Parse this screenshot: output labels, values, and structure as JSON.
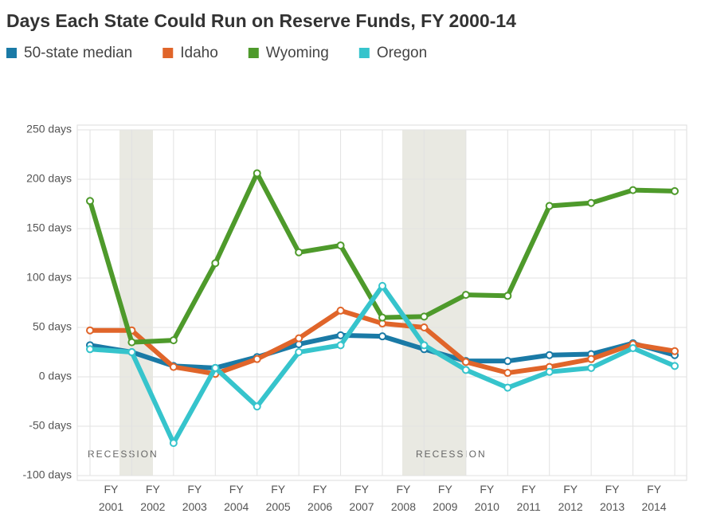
{
  "chart_data": {
    "type": "line",
    "title": "Days Each State Could Run on Reserve Funds, FY 2000-14",
    "categories": [
      null,
      "FY 2001",
      "FY 2002",
      "FY 2003",
      "FY 2004",
      "FY 2005",
      "FY 2006",
      "FY 2007",
      "FY 2008",
      "FY 2009",
      "FY 2010",
      "FY 2011",
      "FY 2012",
      "FY 2013",
      "FY 2014"
    ],
    "series": [
      {
        "name": "50-state median",
        "color": "#1a7aa6",
        "values": [
          32,
          25,
          11,
          9,
          20,
          33,
          42,
          41,
          28,
          16,
          16,
          22,
          23,
          34,
          22
        ]
      },
      {
        "name": "Idaho",
        "color": "#e0652a",
        "values": [
          47,
          47,
          10,
          3,
          18,
          39,
          67,
          54,
          50,
          15,
          4,
          10,
          18,
          33,
          26
        ]
      },
      {
        "name": "Wyoming",
        "color": "#4e9a2b",
        "values": [
          178,
          35,
          37,
          115,
          206,
          126,
          133,
          60,
          61,
          83,
          82,
          173,
          176,
          189,
          188
        ]
      },
      {
        "name": "Oregon",
        "color": "#36c4cc",
        "values": [
          28,
          25,
          -67,
          9,
          -30,
          25,
          32,
          92,
          32,
          7,
          -11,
          5,
          9,
          29,
          11
        ]
      }
    ],
    "annotations": [
      "RECESSION",
      "RECESSION"
    ],
    "ylim": [
      -100,
      250
    ],
    "yticks": [
      {
        "value": -100,
        "label": "-100 days"
      },
      {
        "value": -50,
        "label": "-50 days"
      },
      {
        "value": 0,
        "label": "0 days"
      },
      {
        "value": 50,
        "label": "50 days"
      },
      {
        "value": 100,
        "label": "100 days"
      },
      {
        "value": 150,
        "label": "150 days"
      },
      {
        "value": 200,
        "label": "200 days"
      },
      {
        "value": 250,
        "label": "250 days"
      }
    ],
    "grid": true
  }
}
